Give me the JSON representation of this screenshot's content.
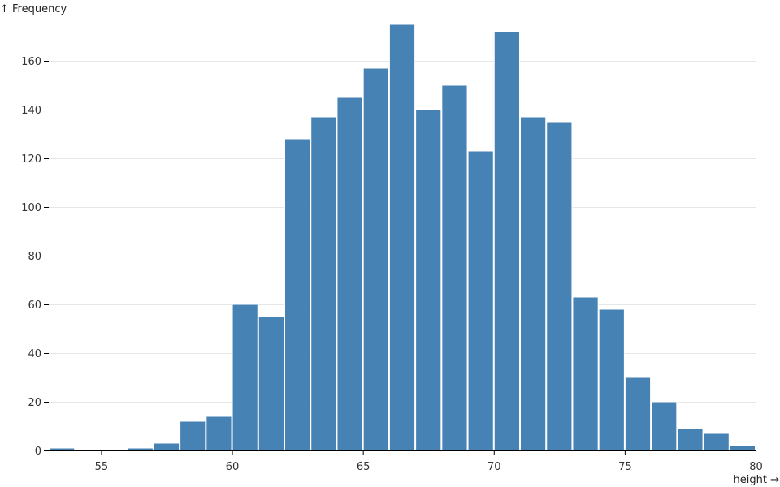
{
  "chart_data": {
    "type": "bar",
    "xlabel": "height →",
    "ylabel": "↑ Frequency",
    "xlim": [
      53,
      80
    ],
    "ylim": [
      0,
      175
    ],
    "x_ticks": [
      55,
      60,
      65,
      70,
      75,
      80
    ],
    "y_ticks": [
      0,
      20,
      40,
      60,
      80,
      100,
      120,
      140,
      160
    ],
    "grid": true,
    "bar_color": "#4682b4",
    "bins": [
      {
        "x0": 53,
        "x1": 54,
        "count": 1
      },
      {
        "x0": 54,
        "x1": 55,
        "count": 0
      },
      {
        "x0": 55,
        "x1": 56,
        "count": 0
      },
      {
        "x0": 56,
        "x1": 57,
        "count": 1
      },
      {
        "x0": 57,
        "x1": 58,
        "count": 3
      },
      {
        "x0": 58,
        "x1": 59,
        "count": 12
      },
      {
        "x0": 59,
        "x1": 60,
        "count": 14
      },
      {
        "x0": 60,
        "x1": 61,
        "count": 60
      },
      {
        "x0": 61,
        "x1": 62,
        "count": 55
      },
      {
        "x0": 62,
        "x1": 63,
        "count": 128
      },
      {
        "x0": 63,
        "x1": 64,
        "count": 137
      },
      {
        "x0": 64,
        "x1": 65,
        "count": 145
      },
      {
        "x0": 65,
        "x1": 66,
        "count": 157
      },
      {
        "x0": 66,
        "x1": 67,
        "count": 175
      },
      {
        "x0": 67,
        "x1": 68,
        "count": 140
      },
      {
        "x0": 68,
        "x1": 69,
        "count": 150
      },
      {
        "x0": 69,
        "x1": 70,
        "count": 123
      },
      {
        "x0": 70,
        "x1": 71,
        "count": 172
      },
      {
        "x0": 71,
        "x1": 72,
        "count": 137
      },
      {
        "x0": 72,
        "x1": 73,
        "count": 135
      },
      {
        "x0": 73,
        "x1": 74,
        "count": 63
      },
      {
        "x0": 74,
        "x1": 75,
        "count": 58
      },
      {
        "x0": 75,
        "x1": 76,
        "count": 30
      },
      {
        "x0": 76,
        "x1": 77,
        "count": 20
      },
      {
        "x0": 77,
        "x1": 78,
        "count": 9
      },
      {
        "x0": 78,
        "x1": 79,
        "count": 7
      },
      {
        "x0": 79,
        "x1": 80,
        "count": 2
      }
    ]
  }
}
